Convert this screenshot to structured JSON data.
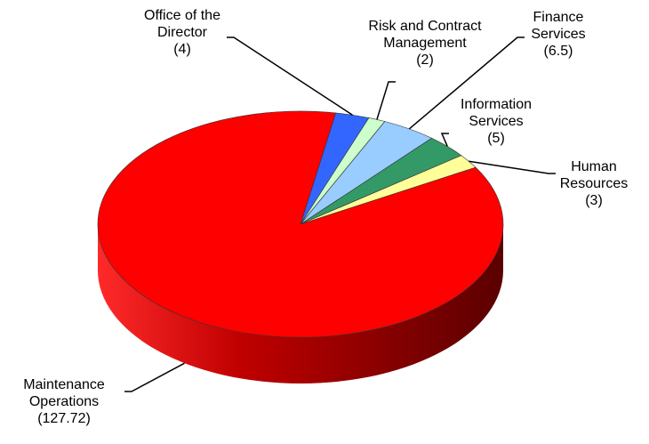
{
  "chart_data": {
    "type": "pie",
    "categories": [
      "Office of the Director",
      "Risk and Contract Management",
      "Finance Services",
      "Information Services",
      "Human Resources",
      "Maintenance Operations"
    ],
    "values": [
      4,
      2,
      6.5,
      5,
      3,
      127.72
    ],
    "value_labels": [
      "(4)",
      "(2)",
      "(6.5)",
      "(5)",
      "(3)",
      "(127.72)"
    ],
    "colors": [
      "#3366ff",
      "#ccffcc",
      "#99ccff",
      "#339966",
      "#ffff99",
      "#ff0000"
    ]
  }
}
